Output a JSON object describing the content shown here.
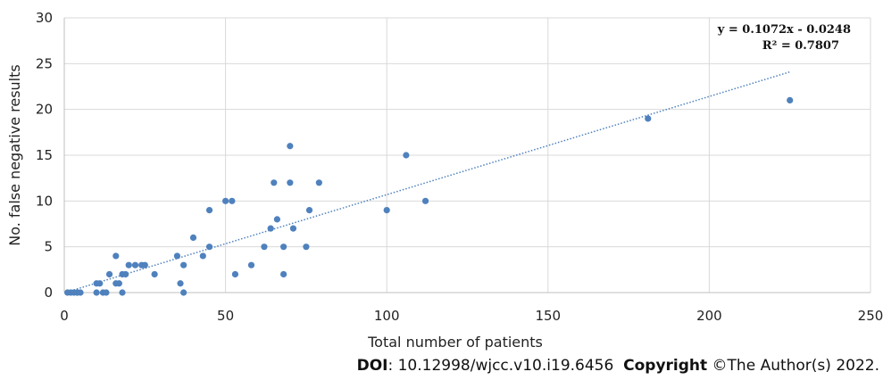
{
  "chart_data": {
    "type": "scatter",
    "xlabel": "Total number of patients",
    "ylabel": "No. false negative results",
    "xlim": [
      0,
      250
    ],
    "ylim": [
      0,
      30
    ],
    "xticks": [
      0,
      50,
      100,
      150,
      200,
      250
    ],
    "yticks": [
      0,
      5,
      10,
      15,
      20,
      25,
      30
    ],
    "grid": true,
    "series": [
      {
        "color": "#4f81bd",
        "points": [
          [
            1,
            0
          ],
          [
            2,
            0
          ],
          [
            3,
            0
          ],
          [
            4,
            0
          ],
          [
            4,
            0
          ],
          [
            5,
            0
          ],
          [
            10,
            0
          ],
          [
            10,
            1
          ],
          [
            11,
            1
          ],
          [
            12,
            0
          ],
          [
            13,
            0
          ],
          [
            14,
            2
          ],
          [
            16,
            4
          ],
          [
            16,
            1
          ],
          [
            17,
            1
          ],
          [
            18,
            2
          ],
          [
            18,
            0
          ],
          [
            19,
            2
          ],
          [
            20,
            3
          ],
          [
            22,
            3
          ],
          [
            24,
            3
          ],
          [
            25,
            3
          ],
          [
            28,
            2
          ],
          [
            35,
            4
          ],
          [
            36,
            1
          ],
          [
            37,
            3
          ],
          [
            37,
            0
          ],
          [
            40,
            6
          ],
          [
            43,
            4
          ],
          [
            45,
            9
          ],
          [
            45,
            5
          ],
          [
            50,
            10
          ],
          [
            52,
            10
          ],
          [
            53,
            2
          ],
          [
            58,
            3
          ],
          [
            62,
            5
          ],
          [
            64,
            7
          ],
          [
            65,
            12
          ],
          [
            66,
            8
          ],
          [
            68,
            5
          ],
          [
            68,
            2
          ],
          [
            70,
            16
          ],
          [
            70,
            12
          ],
          [
            71,
            7
          ],
          [
            75,
            5
          ],
          [
            76,
            9
          ],
          [
            79,
            12
          ],
          [
            100,
            9
          ],
          [
            106,
            15
          ],
          [
            112,
            10
          ],
          [
            181,
            19
          ],
          [
            225,
            21
          ]
        ]
      }
    ],
    "trendline": {
      "type": "linear",
      "slope": 0.1072,
      "intercept": -0.0248,
      "x_range": [
        2,
        225
      ],
      "color": "#4f81bd",
      "style": "dotted",
      "equation": "y = 0.1072x - 0.0248",
      "r_squared": "R² = 0.7807"
    }
  },
  "footer": {
    "doi_label": "DOI",
    "doi_value": ": 10.12998/wjcc.v10.i19.6456",
    "copyright_label": "Copyright",
    "copyright_value": " ©The Author(s) 2022."
  }
}
